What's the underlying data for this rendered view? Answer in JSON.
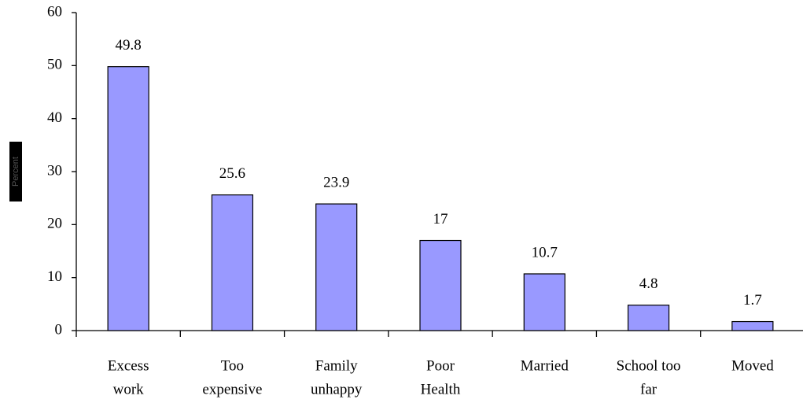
{
  "chart_data": {
    "type": "bar",
    "ylabel": "Percent",
    "categories": [
      [
        "Excess",
        "work"
      ],
      [
        "Too",
        "expensive"
      ],
      [
        "Family",
        "unhappy"
      ],
      [
        "Poor",
        "Health"
      ],
      [
        "Married"
      ],
      [
        "School too",
        "far"
      ],
      [
        "Moved"
      ]
    ],
    "values": [
      49.8,
      25.6,
      23.9,
      17,
      10.7,
      4.8,
      1.7
    ],
    "color": "#9999ff",
    "ylim": [
      0,
      60
    ],
    "yticks": [
      0,
      10,
      20,
      30,
      40,
      50,
      60
    ],
    "grid": false
  }
}
